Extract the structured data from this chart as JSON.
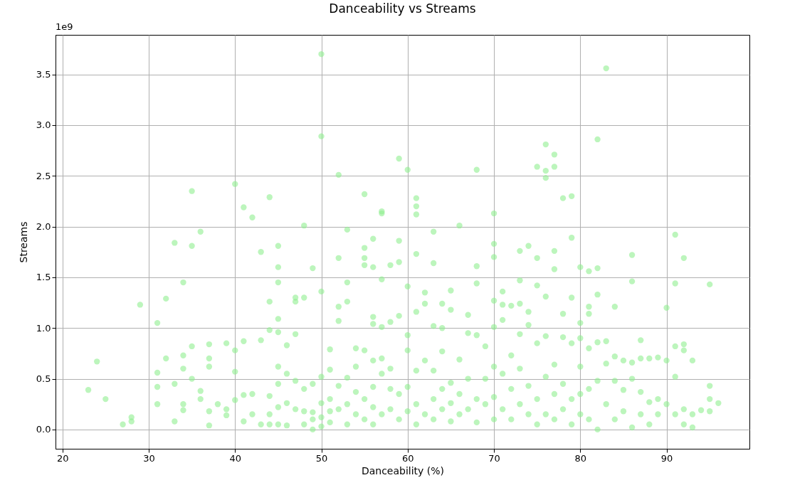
{
  "chart_data": {
    "type": "scatter",
    "title": "Danceability vs Streams",
    "xlabel": "Danceability (%)",
    "ylabel": "Streams",
    "annotations": [
      "1e9"
    ],
    "xlim": [
      19.2,
      99.6
    ],
    "ylim": [
      -0.19,
      3.89
    ],
    "xticks": [
      20,
      30,
      40,
      50,
      60,
      70,
      80,
      90
    ],
    "yticks": [
      {
        "value": 0,
        "label": "0.0"
      },
      {
        "value": 0.5,
        "label": "0.5"
      },
      {
        "value": 1,
        "label": "1.0"
      },
      {
        "value": 1.5,
        "label": "1.5"
      },
      {
        "value": 2,
        "label": "2.0"
      },
      {
        "value": 2.5,
        "label": "2.5"
      },
      {
        "value": 3,
        "label": "3.0"
      },
      {
        "value": 3.5,
        "label": "3.5"
      }
    ],
    "grid": true,
    "marker": "circle",
    "series": [
      {
        "color": "#90ee90",
        "x": [
          23,
          24,
          25,
          27,
          28,
          28,
          29,
          31,
          31,
          31,
          31,
          32,
          32,
          33,
          33,
          33,
          34,
          34,
          34,
          34,
          34,
          35,
          35,
          35,
          35,
          36,
          36,
          36,
          37,
          37,
          37,
          37,
          37,
          38,
          39,
          39,
          39,
          40,
          40,
          40,
          40,
          41,
          41,
          41,
          41,
          42,
          42,
          42,
          43,
          43,
          43,
          44,
          44,
          44,
          44,
          44,
          44,
          45,
          45,
          45,
          45,
          45,
          45,
          45,
          45,
          45,
          46,
          46,
          46,
          46,
          47,
          47,
          47,
          47,
          47,
          48,
          48,
          48,
          48,
          48,
          49,
          49,
          49,
          49,
          49,
          50,
          50,
          50,
          50,
          50,
          50,
          50,
          51,
          51,
          51,
          51,
          51,
          52,
          52,
          52,
          52,
          52,
          52,
          53,
          53,
          53,
          53,
          53,
          53,
          54,
          54,
          54,
          54,
          55,
          55,
          55,
          55,
          55,
          55,
          55,
          56,
          56,
          56,
          56,
          56,
          56,
          56,
          56,
          57,
          57,
          57,
          57,
          57,
          57,
          57,
          58,
          58,
          58,
          58,
          58,
          59,
          59,
          59,
          59,
          59,
          59,
          60,
          60,
          60,
          60,
          60,
          60,
          61,
          61,
          61,
          61,
          61,
          61,
          61,
          61,
          62,
          62,
          62,
          62,
          63,
          63,
          63,
          63,
          63,
          63,
          64,
          64,
          64,
          64,
          64,
          65,
          65,
          65,
          65,
          65,
          66,
          66,
          66,
          66,
          67,
          67,
          67,
          67,
          68,
          68,
          68,
          68,
          68,
          68,
          69,
          69,
          69,
          70,
          70,
          70,
          70,
          70,
          70,
          70,
          70,
          71,
          71,
          71,
          71,
          71,
          72,
          72,
          72,
          72,
          73,
          73,
          73,
          73,
          73,
          73,
          74,
          74,
          74,
          74,
          74,
          75,
          75,
          75,
          75,
          75,
          75,
          76,
          76,
          76,
          76,
          76,
          76,
          76,
          77,
          77,
          77,
          77,
          77,
          77,
          77,
          78,
          78,
          78,
          78,
          78,
          79,
          79,
          79,
          79,
          79,
          79,
          80,
          80,
          80,
          80,
          80,
          80,
          81,
          81,
          81,
          81,
          81,
          81,
          82,
          82,
          82,
          82,
          82,
          82,
          83,
          83,
          83,
          83,
          84,
          84,
          84,
          84,
          85,
          85,
          85,
          86,
          86,
          86,
          86,
          86,
          87,
          87,
          87,
          87,
          88,
          88,
          88,
          89,
          89,
          89,
          90,
          90,
          90,
          91,
          91,
          91,
          91,
          91,
          92,
          92,
          92,
          92,
          92,
          93,
          93,
          93,
          94,
          95,
          95,
          95,
          95,
          96
        ],
        "values": [
          0.39,
          0.67,
          0.3,
          0.05,
          0.12,
          0.08,
          1.23,
          1.05,
          0.56,
          0.42,
          0.25,
          1.29,
          0.7,
          1.84,
          0.45,
          0.08,
          1.45,
          0.73,
          0.6,
          0.25,
          0.19,
          2.35,
          1.81,
          0.82,
          0.5,
          1.95,
          0.38,
          0.3,
          0.84,
          0.7,
          0.62,
          0.18,
          0.04,
          0.25,
          0.85,
          0.2,
          0.14,
          2.42,
          0.78,
          0.57,
          0.29,
          2.19,
          0.87,
          0.34,
          0.08,
          2.09,
          0.35,
          0.15,
          1.75,
          0.88,
          0.05,
          2.29,
          1.26,
          0.98,
          0.33,
          0.15,
          0.05,
          1.81,
          1.6,
          1.45,
          1.09,
          0.96,
          0.62,
          0.45,
          0.22,
          0.05,
          0.83,
          0.55,
          0.26,
          0.04,
          1.3,
          1.26,
          0.94,
          0.48,
          0.2,
          2.01,
          1.3,
          0.4,
          0.18,
          0.05,
          1.59,
          0.45,
          0.17,
          0.1,
          0.0,
          3.7,
          2.89,
          1.36,
          0.52,
          0.26,
          0.12,
          0.03,
          0.79,
          0.59,
          0.3,
          0.18,
          0.07,
          2.51,
          1.69,
          1.21,
          1.07,
          0.43,
          0.2,
          1.97,
          1.45,
          1.26,
          0.51,
          0.25,
          0.05,
          0.8,
          0.62,
          0.37,
          0.15,
          2.32,
          1.79,
          1.69,
          1.62,
          0.78,
          0.3,
          0.1,
          1.88,
          1.6,
          1.11,
          1.04,
          0.68,
          0.42,
          0.22,
          0.05,
          2.15,
          2.13,
          1.48,
          1.01,
          0.7,
          0.55,
          0.15,
          1.62,
          1.06,
          0.6,
          0.4,
          0.2,
          2.67,
          1.86,
          1.65,
          1.12,
          0.35,
          0.1,
          2.56,
          1.41,
          0.93,
          0.78,
          0.42,
          0.18,
          2.28,
          2.2,
          2.12,
          1.73,
          1.16,
          0.58,
          0.25,
          0.05,
          1.35,
          1.24,
          0.68,
          0.15,
          1.95,
          1.64,
          1.02,
          0.58,
          0.3,
          0.1,
          1.24,
          1.0,
          0.77,
          0.4,
          0.2,
          1.37,
          1.18,
          0.46,
          0.26,
          0.08,
          2.01,
          0.69,
          0.35,
          0.15,
          1.13,
          0.95,
          0.5,
          0.2,
          2.56,
          1.61,
          1.44,
          0.93,
          0.3,
          0.07,
          0.82,
          0.5,
          0.25,
          2.13,
          1.83,
          1.7,
          1.27,
          1.01,
          0.62,
          0.32,
          0.1,
          1.36,
          1.23,
          1.08,
          0.55,
          0.2,
          1.22,
          0.73,
          0.4,
          0.1,
          1.76,
          1.47,
          1.24,
          0.94,
          0.6,
          0.25,
          1.81,
          1.16,
          1.03,
          0.43,
          0.15,
          2.59,
          1.69,
          1.42,
          0.85,
          0.3,
          0.05,
          2.81,
          2.55,
          2.48,
          1.31,
          0.92,
          0.52,
          0.15,
          2.71,
          2.59,
          1.76,
          1.58,
          0.64,
          0.35,
          0.1,
          2.28,
          1.14,
          0.91,
          0.45,
          0.2,
          2.3,
          1.89,
          1.3,
          0.85,
          0.3,
          0.05,
          1.6,
          1.05,
          0.9,
          0.62,
          0.35,
          0.15,
          1.56,
          1.21,
          1.14,
          0.8,
          0.4,
          0.1,
          2.86,
          1.59,
          1.33,
          0.86,
          0.48,
          0.0,
          3.56,
          0.87,
          0.65,
          0.25,
          1.21,
          0.72,
          0.48,
          0.1,
          0.68,
          0.39,
          0.18,
          1.72,
          1.46,
          0.66,
          0.5,
          0.02,
          0.88,
          0.7,
          0.37,
          0.15,
          0.7,
          0.27,
          0.05,
          0.71,
          0.3,
          0.15,
          1.2,
          0.68,
          0.25,
          1.92,
          1.44,
          0.82,
          0.52,
          0.15,
          1.69,
          0.84,
          0.78,
          0.2,
          0.05,
          0.68,
          0.15,
          0.02,
          0.19,
          1.43,
          0.43,
          0.3,
          0.18,
          0.26
        ]
      }
    ]
  }
}
